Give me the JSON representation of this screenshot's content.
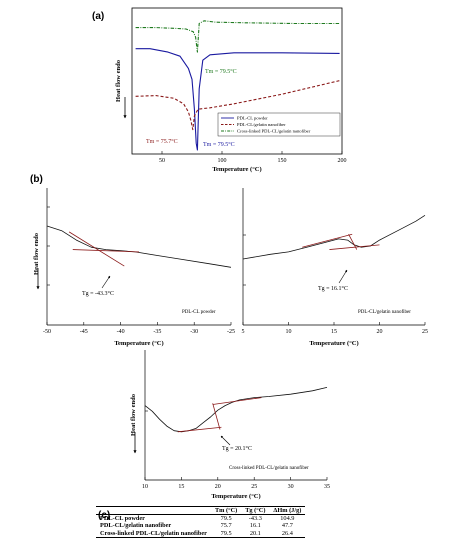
{
  "panels": {
    "a": "(a)",
    "b": "(b)",
    "c": "(c)"
  },
  "chart_data": [
    {
      "type": "line",
      "panel": "(a)",
      "xlabel": "Temperature (°C)",
      "ylabel": "Heat flow endo",
      "xlim": [
        25,
        200
      ],
      "xticks": [
        50,
        100,
        150,
        200
      ],
      "series": [
        {
          "name": "PDL-CL powder",
          "color": "#1a1aa0",
          "style": "solid",
          "x": [
            28,
            40,
            55,
            65,
            72,
            75,
            77,
            78.5,
            79.5,
            81,
            84,
            90,
            110,
            150,
            198
          ],
          "y": [
            0.745,
            0.745,
            0.72,
            0.69,
            0.6,
            0.52,
            0.3,
            0.05,
            0.0,
            0.45,
            0.66,
            0.7,
            0.715,
            0.715,
            0.71
          ]
        },
        {
          "name": "PDL-CL/gelatin nanofiber",
          "color": "#8b1a1a",
          "style": "dashed",
          "x": [
            28,
            45,
            60,
            68,
            72,
            74,
            75.7,
            77,
            80,
            90,
            110,
            150,
            198
          ],
          "y": [
            0.395,
            0.4,
            0.38,
            0.34,
            0.28,
            0.22,
            0.15,
            0.25,
            0.3,
            0.31,
            0.34,
            0.41,
            0.51
          ]
        },
        {
          "name": "Cross-linked PDL-CL/gelatin nanofiber",
          "color": "#1f7a1f",
          "style": "dashdot",
          "x": [
            28,
            45,
            60,
            70,
            76,
            78,
            79.5,
            81,
            85,
            95,
            120,
            160,
            198
          ],
          "y": [
            0.9,
            0.9,
            0.895,
            0.89,
            0.87,
            0.83,
            0.72,
            0.93,
            0.95,
            0.94,
            0.935,
            0.93,
            0.93
          ]
        }
      ],
      "annotations": [
        {
          "text": "Tm = 79.5°C",
          "color": "#1f7a1f"
        },
        {
          "text": "Tm = 75.7°C",
          "color": "#8b1a1a"
        },
        {
          "text": "Tm = 79.5°C",
          "color": "#1a1aa0"
        }
      ]
    },
    {
      "type": "line",
      "panel": "(b)",
      "caption": "PDL-CL powder",
      "xlabel": "Temperature (°C)",
      "ylabel": "Heat flow endo",
      "xlim": [
        -50,
        -25
      ],
      "xticks": [
        -50,
        -45,
        -40,
        -35,
        -30,
        -25
      ],
      "series": [
        {
          "x": [
            -50,
            -48,
            -46,
            -44,
            -42,
            -40,
            -38,
            -35,
            -32,
            -28,
            -25
          ],
          "y": [
            0.78,
            0.74,
            0.66,
            0.6,
            0.58,
            0.57,
            0.56,
            0.53,
            0.5,
            0.46,
            0.43
          ]
        }
      ],
      "tangents": [
        {
          "x": [
            -47,
            -39.5
          ],
          "y": [
            0.73,
            0.44
          ]
        },
        {
          "x": [
            -46.5,
            -37.5
          ],
          "y": [
            0.58,
            0.56
          ]
        }
      ],
      "annotation": "Tg = -43.3°C",
      "tg": -43.3
    },
    {
      "type": "line",
      "caption": "PDL-CL/gelatin nanofiber",
      "xlabel": "Temperature (°C)",
      "xlim": [
        5,
        25
      ],
      "xticks": [
        5,
        10,
        15,
        20,
        25
      ],
      "series": [
        {
          "x": [
            5,
            8,
            10,
            12,
            14,
            15.5,
            16.5,
            17.2,
            18,
            19,
            20,
            22,
            24,
            25
          ],
          "y": [
            0.5,
            0.54,
            0.56,
            0.6,
            0.64,
            0.67,
            0.66,
            0.62,
            0.6,
            0.61,
            0.66,
            0.74,
            0.82,
            0.87
          ]
        }
      ],
      "tangents": [
        {
          "x": [
            11.5,
            17.0
          ],
          "y": [
            0.6,
            0.71
          ]
        },
        {
          "x": [
            14.5,
            20.0
          ],
          "y": [
            0.58,
            0.62
          ]
        },
        {
          "x": [
            16.6,
            17.5
          ],
          "y": [
            0.71,
            0.58
          ]
        }
      ],
      "annotation": "Tg = 16.1°C",
      "tg": 16.1
    },
    {
      "type": "line",
      "caption": "Cross-linked PDL-CL/gelatin nanofiber",
      "xlabel": "Temperature (°C)",
      "ylabel": "Heat flow endo",
      "xlim": [
        10,
        35
      ],
      "xticks": [
        10,
        15,
        20,
        25,
        30,
        35
      ],
      "series": [
        {
          "x": [
            10,
            11,
            12,
            13,
            14,
            15,
            16,
            17,
            18,
            19,
            20,
            21,
            22,
            23,
            25,
            27,
            30,
            33,
            35
          ],
          "y": [
            0.6,
            0.55,
            0.48,
            0.42,
            0.38,
            0.37,
            0.38,
            0.4,
            0.45,
            0.5,
            0.56,
            0.6,
            0.63,
            0.65,
            0.67,
            0.68,
            0.7,
            0.73,
            0.76
          ]
        }
      ],
      "tangents": [
        {
          "x": [
            14.5,
            20.5
          ],
          "y": [
            0.37,
            0.41
          ]
        },
        {
          "x": [
            19.3,
            26.0
          ],
          "y": [
            0.61,
            0.67
          ]
        },
        {
          "x": [
            19.3,
            20.3
          ],
          "y": [
            0.62,
            0.39
          ]
        }
      ],
      "annotation": "Tg = 20.1°C",
      "tg": 20.1
    }
  ],
  "table": {
    "headers": [
      "",
      "Tm (°C)",
      "Tg (°C)",
      "ΔHm (J/g)"
    ],
    "rows": [
      [
        "PDL-CL powder",
        "79.5",
        "-43.3",
        "104.9"
      ],
      [
        "PDL-CL/gelatin nanofiber",
        "75.7",
        "16.1",
        "47.7"
      ],
      [
        "Cross-linked PDL-CL/gelatin nanofiber",
        "79.5",
        "20.1",
        "26.4"
      ]
    ]
  }
}
